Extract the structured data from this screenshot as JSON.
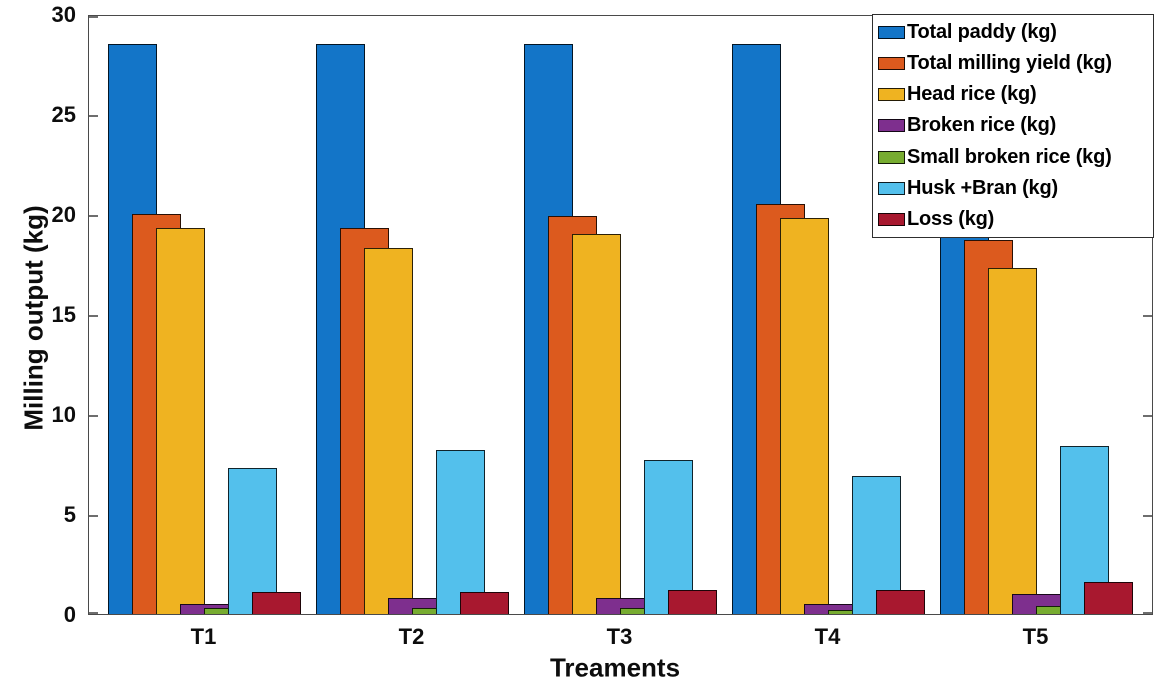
{
  "chart_data": {
    "type": "bar",
    "title": "",
    "xlabel": "Treaments",
    "ylabel": "Milling output (kg)",
    "categories": [
      "T1",
      "T2",
      "T3",
      "T4",
      "T5"
    ],
    "ylim": [
      0,
      30
    ],
    "yticks": [
      0,
      5,
      10,
      15,
      20,
      25,
      30
    ],
    "grid": false,
    "legend_position": "top-right-inside",
    "bar_layout": "grouped-overlapping",
    "series": [
      {
        "name": "Total paddy (kg)",
        "color": "#1375C8",
        "values": [
          28.5,
          28.5,
          28.5,
          28.5,
          28.5
        ]
      },
      {
        "name": "Total milling yield (kg)",
        "color": "#DC5A1E",
        "values": [
          20.0,
          19.3,
          19.9,
          20.5,
          18.7
        ]
      },
      {
        "name": "Head rice (kg)",
        "color": "#EFB321",
        "values": [
          19.3,
          18.3,
          19.0,
          19.8,
          17.3
        ]
      },
      {
        "name": "Broken rice (kg)",
        "color": "#7E2F8E",
        "values": [
          0.5,
          0.8,
          0.8,
          0.5,
          1.0
        ]
      },
      {
        "name": "Small broken rice (kg)",
        "color": "#77AC30",
        "values": [
          0.3,
          0.3,
          0.3,
          0.2,
          0.4
        ]
      },
      {
        "name": "Husk +Bran (kg)",
        "color": "#53C0EC",
        "values": [
          7.3,
          8.2,
          7.7,
          6.9,
          8.4
        ]
      },
      {
        "name": "Loss (kg)",
        "color": "#A8182F",
        "values": [
          1.1,
          1.1,
          1.2,
          1.2,
          1.6
        ]
      }
    ]
  }
}
